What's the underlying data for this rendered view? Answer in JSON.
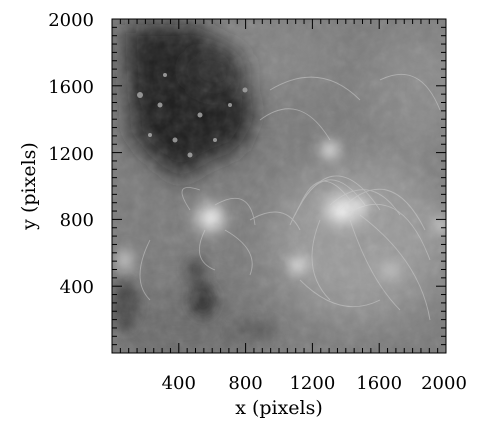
{
  "figure": {
    "xlabel": "x (pixels)",
    "ylabel": "y (pixels)",
    "xlim": [
      0,
      2000
    ],
    "ylim": [
      0,
      2000
    ],
    "x_ticks": [
      400,
      800,
      1200,
      1600,
      2000
    ],
    "y_ticks": [
      400,
      800,
      1200,
      1600,
      2000
    ],
    "minor_tick_step": 50,
    "image_description_tags": [
      "solar-corona",
      "grayscale",
      "coronal-loops",
      "coronal-hole"
    ]
  }
}
